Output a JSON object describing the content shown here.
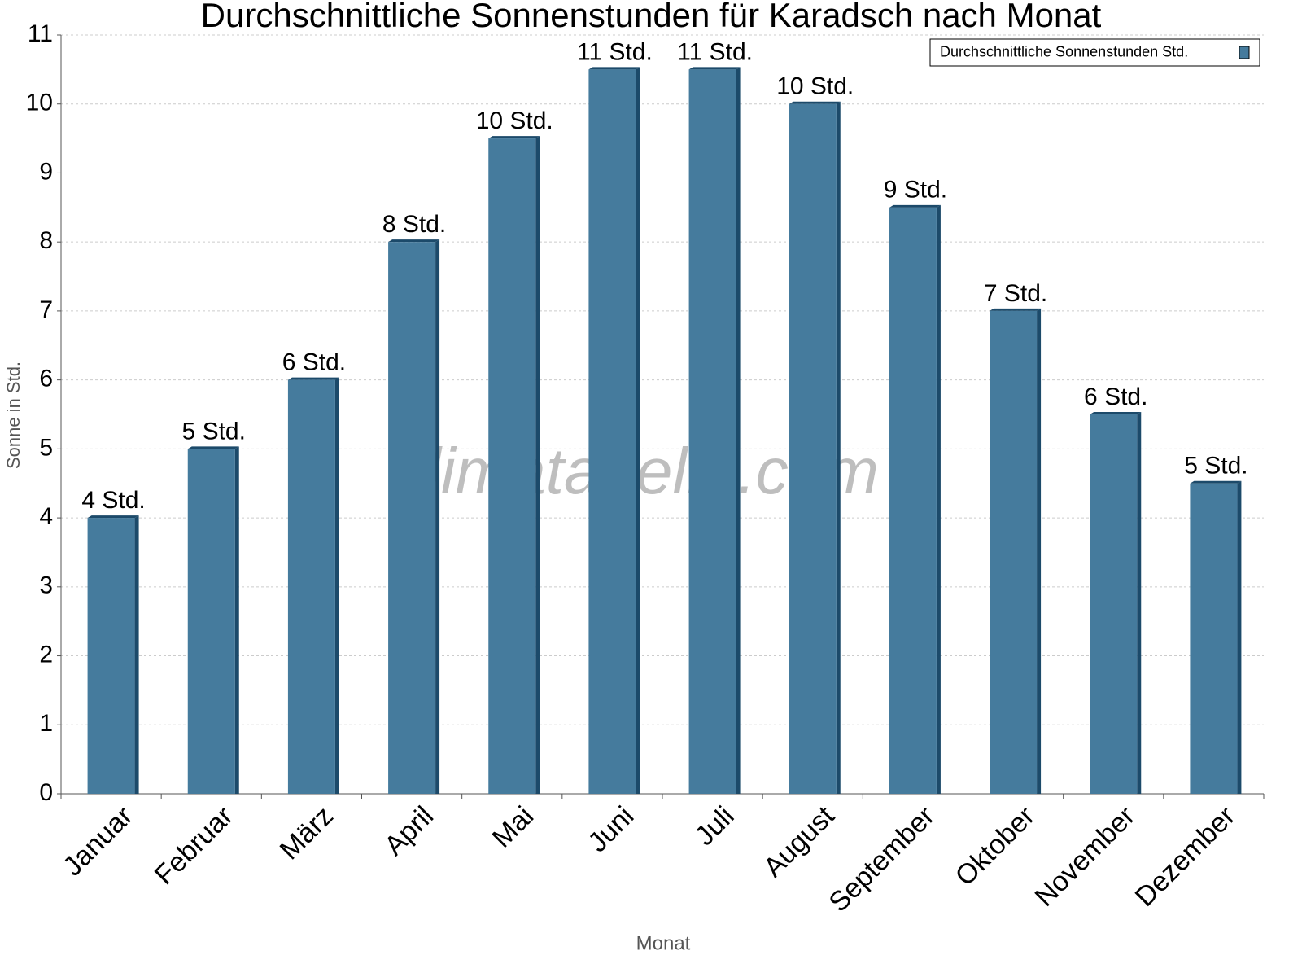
{
  "chart_data": {
    "type": "bar",
    "title": "Durchschnittliche Sonnenstunden für Karadsch nach Monat",
    "x_label": "Monat",
    "y_label": "Sonne in Std.",
    "watermark": "klimatabelle.com",
    "categories": [
      "Januar",
      "Februar",
      "März",
      "April",
      "Mai",
      "Juni",
      "Juli",
      "August",
      "September",
      "Oktober",
      "November",
      "Dezember"
    ],
    "series": [
      {
        "name": "Durchschnittliche Sonnenstunden Std.",
        "color": "#457b9d",
        "values": [
          4,
          5,
          6,
          8,
          9.5,
          10.5,
          10.5,
          10,
          8.5,
          7,
          5.5,
          4.5
        ],
        "value_labels": [
          "4 Std.",
          "5 Std.",
          "6 Std.",
          "8 Std.",
          "10 Std.",
          "11 Std.",
          "11 Std.",
          "10 Std.",
          "9 Std.",
          "7 Std.",
          "6 Std.",
          "5 Std."
        ]
      }
    ],
    "ylim": [
      0,
      11
    ],
    "yticks": [
      0,
      1,
      2,
      3,
      4,
      5,
      6,
      7,
      8,
      9,
      10,
      11
    ],
    "grid": true,
    "legend": "upper right"
  }
}
